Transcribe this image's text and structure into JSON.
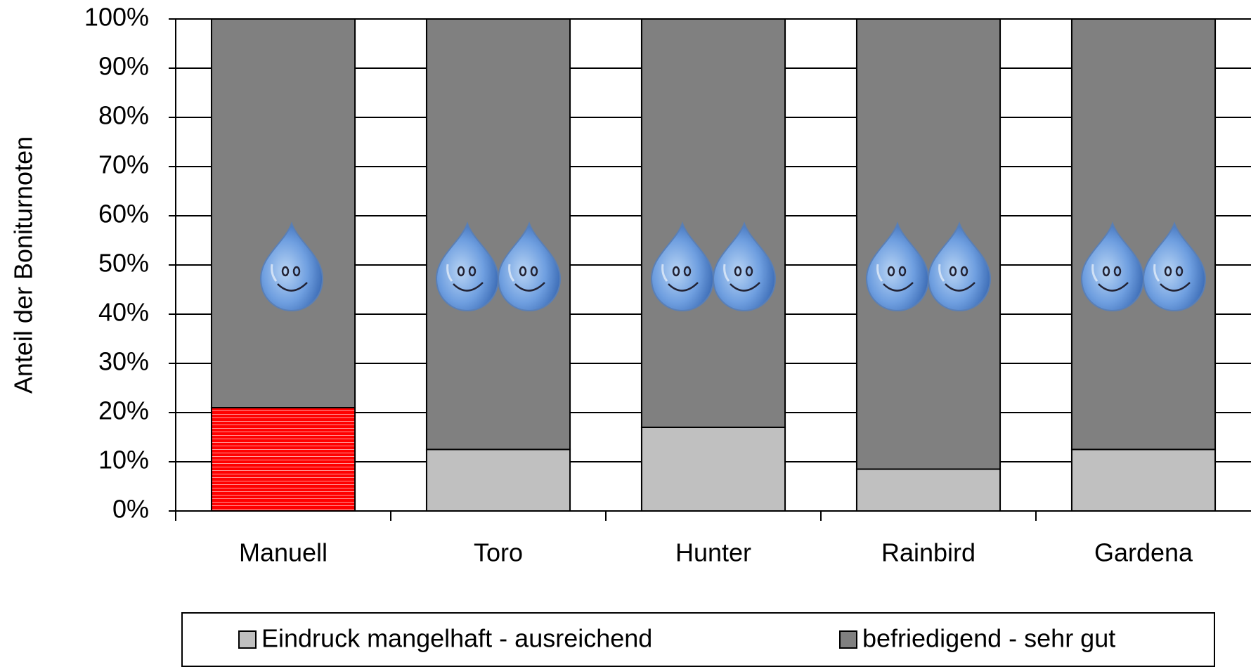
{
  "chart_data": {
    "type": "stacked_bar",
    "y_label": "Anteil der Boniturnoten",
    "categories": [
      "Manuell",
      "Toro",
      "Hunter",
      "Rainbird",
      "Gardena"
    ],
    "series": [
      {
        "name": "Eindruck mangelhaft - ausreichend",
        "color": "#c0c0c0",
        "point_colors": [
          "#ff0000",
          null,
          null,
          null,
          null
        ],
        "values": [
          21,
          12.5,
          17,
          8.5,
          12.5
        ]
      },
      {
        "name": "befriedigend - sehr gut",
        "color": "#808080",
        "values": [
          79,
          87.5,
          83,
          91.5,
          87.5
        ]
      }
    ],
    "drops": [
      1,
      2,
      2,
      2,
      2
    ],
    "ylim": [
      0,
      100
    ],
    "yticks": [
      {
        "value": 0,
        "label": "0%"
      },
      {
        "value": 10,
        "label": "10%"
      },
      {
        "value": 20,
        "label": "20%"
      },
      {
        "value": 30,
        "label": "30%"
      },
      {
        "value": 40,
        "label": "40%"
      },
      {
        "value": 50,
        "label": "50%"
      },
      {
        "value": 60,
        "label": "60%"
      },
      {
        "value": 70,
        "label": "70%"
      },
      {
        "value": 80,
        "label": "80%"
      },
      {
        "value": 90,
        "label": "90%"
      },
      {
        "value": 100,
        "label": "100%"
      }
    ],
    "grid": true,
    "legend": "bottom"
  }
}
